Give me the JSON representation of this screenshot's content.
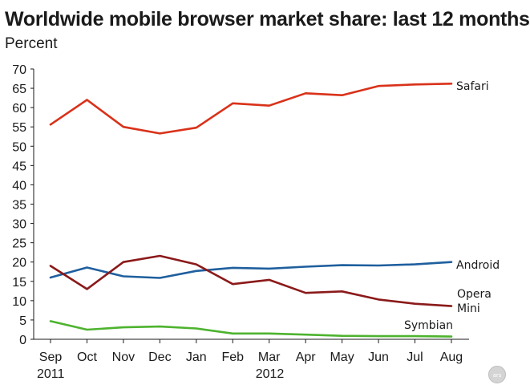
{
  "chart_data": {
    "type": "line",
    "title": "Worldwide mobile browser market share: last 12 months",
    "subtitle": "Percent",
    "xlabel": "",
    "ylabel": "",
    "categories": [
      "Sep",
      "Oct",
      "Nov",
      "Dec",
      "Jan",
      "Feb",
      "Mar",
      "Apr",
      "May",
      "Jun",
      "Jul",
      "Aug"
    ],
    "year_labels": [
      {
        "category": "Sep",
        "text": "2011"
      },
      {
        "category": "Mar",
        "text": "2012"
      }
    ],
    "ylim": [
      0,
      70
    ],
    "yticks": [
      0,
      5,
      10,
      15,
      20,
      25,
      30,
      35,
      40,
      45,
      50,
      55,
      60,
      65,
      70
    ],
    "grid": false,
    "series": [
      {
        "name": "Safari",
        "color": "#d9321a",
        "label_lines": [
          "Safari"
        ],
        "values": [
          55.6,
          62.0,
          55.0,
          53.3,
          54.8,
          61.1,
          60.5,
          63.7,
          63.2,
          65.6,
          66.0,
          66.2
        ]
      },
      {
        "name": "Android",
        "color": "#1f5f9e",
        "label_lines": [
          "Android"
        ],
        "values": [
          16.0,
          18.6,
          16.3,
          15.9,
          17.7,
          18.5,
          18.3,
          18.8,
          19.2,
          19.1,
          19.4,
          20.0
        ]
      },
      {
        "name": "Opera Mini",
        "color": "#8b1a1a",
        "label_lines": [
          "Opera",
          "Mini"
        ],
        "values": [
          19.0,
          13.0,
          20.0,
          21.6,
          19.4,
          14.3,
          15.4,
          12.0,
          12.4,
          10.3,
          9.2,
          8.6
        ]
      },
      {
        "name": "Symbian",
        "color": "#4db32e",
        "label_lines": [
          "Symbian"
        ],
        "values": [
          4.7,
          2.5,
          3.1,
          3.3,
          2.8,
          1.5,
          1.5,
          1.2,
          0.9,
          0.8,
          0.8,
          0.7
        ]
      }
    ]
  },
  "logo": {
    "text": "ars"
  }
}
